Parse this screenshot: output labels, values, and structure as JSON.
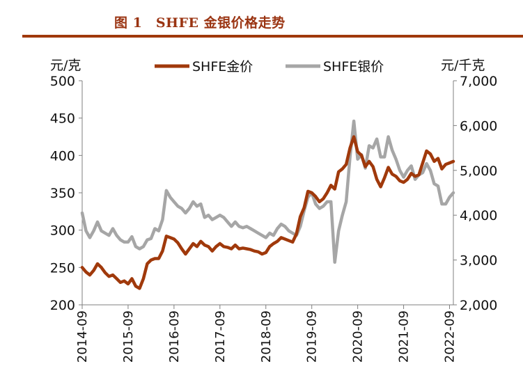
{
  "figure_title": "图 1　SHFE 金银价格走势",
  "colors": {
    "gold": "#a0390b",
    "silver": "#a6a6a6",
    "title": "#9a3412",
    "axis": "#7f7f7f"
  },
  "chart_data": {
    "type": "line",
    "title": "",
    "left_unit": "元/克",
    "right_unit": "元/千克",
    "legend_position": "top",
    "grid": false,
    "x_range": [
      "2014-09",
      "2022-10"
    ],
    "x_ticks": [
      "2014-09",
      "2015-09",
      "2016-09",
      "2017-09",
      "2018-09",
      "2019-09",
      "2020-09",
      "2021-09",
      "2022-09"
    ],
    "y_left": {
      "min": 200,
      "max": 500,
      "ticks": [
        "200",
        "250",
        "300",
        "350",
        "400",
        "450",
        "500"
      ]
    },
    "y_right": {
      "min": 2000,
      "max": 7000,
      "ticks": [
        "2,000",
        "3,000",
        "4,000",
        "5,000",
        "6,000",
        "7,000"
      ]
    },
    "series": [
      {
        "name": "SHFE金价",
        "axis": "left",
        "points": [
          [
            "2014-09",
            250
          ],
          [
            "2014-10",
            244
          ],
          [
            "2014-11",
            240
          ],
          [
            "2014-12",
            246
          ],
          [
            "2015-01",
            255
          ],
          [
            "2015-02",
            250
          ],
          [
            "2015-03",
            243
          ],
          [
            "2015-04",
            238
          ],
          [
            "2015-05",
            240
          ],
          [
            "2015-06",
            235
          ],
          [
            "2015-07",
            230
          ],
          [
            "2015-08",
            232
          ],
          [
            "2015-09",
            228
          ],
          [
            "2015-10",
            235
          ],
          [
            "2015-11",
            225
          ],
          [
            "2015-12",
            222
          ],
          [
            "2016-01",
            235
          ],
          [
            "2016-02",
            255
          ],
          [
            "2016-03",
            260
          ],
          [
            "2016-04",
            262
          ],
          [
            "2016-05",
            262
          ],
          [
            "2016-06",
            272
          ],
          [
            "2016-07",
            292
          ],
          [
            "2016-08",
            290
          ],
          [
            "2016-09",
            288
          ],
          [
            "2016-10",
            283
          ],
          [
            "2016-11",
            275
          ],
          [
            "2016-12",
            268
          ],
          [
            "2017-01",
            275
          ],
          [
            "2017-02",
            282
          ],
          [
            "2017-03",
            278
          ],
          [
            "2017-04",
            285
          ],
          [
            "2017-05",
            280
          ],
          [
            "2017-06",
            278
          ],
          [
            "2017-07",
            272
          ],
          [
            "2017-08",
            278
          ],
          [
            "2017-09",
            282
          ],
          [
            "2017-10",
            278
          ],
          [
            "2017-11",
            277
          ],
          [
            "2017-12",
            275
          ],
          [
            "2018-01",
            280
          ],
          [
            "2018-02",
            275
          ],
          [
            "2018-03",
            276
          ],
          [
            "2018-04",
            275
          ],
          [
            "2018-05",
            274
          ],
          [
            "2018-06",
            272
          ],
          [
            "2018-07",
            271
          ],
          [
            "2018-08",
            268
          ],
          [
            "2018-09",
            270
          ],
          [
            "2018-10",
            278
          ],
          [
            "2018-11",
            282
          ],
          [
            "2018-12",
            285
          ],
          [
            "2019-01",
            290
          ],
          [
            "2019-02",
            288
          ],
          [
            "2019-03",
            286
          ],
          [
            "2019-04",
            284
          ],
          [
            "2019-05",
            295
          ],
          [
            "2019-06",
            318
          ],
          [
            "2019-07",
            330
          ],
          [
            "2019-08",
            352
          ],
          [
            "2019-09",
            350
          ],
          [
            "2019-10",
            345
          ],
          [
            "2019-11",
            338
          ],
          [
            "2019-12",
            342
          ],
          [
            "2020-01",
            350
          ],
          [
            "2020-02",
            360
          ],
          [
            "2020-03",
            355
          ],
          [
            "2020-04",
            378
          ],
          [
            "2020-05",
            382
          ],
          [
            "2020-06",
            388
          ],
          [
            "2020-07",
            410
          ],
          [
            "2020-08",
            425
          ],
          [
            "2020-09",
            405
          ],
          [
            "2020-10",
            400
          ],
          [
            "2020-11",
            385
          ],
          [
            "2020-12",
            392
          ],
          [
            "2021-01",
            385
          ],
          [
            "2021-02",
            368
          ],
          [
            "2021-03",
            358
          ],
          [
            "2021-04",
            370
          ],
          [
            "2021-05",
            384
          ],
          [
            "2021-06",
            375
          ],
          [
            "2021-07",
            372
          ],
          [
            "2021-08",
            366
          ],
          [
            "2021-09",
            364
          ],
          [
            "2021-10",
            368
          ],
          [
            "2021-11",
            376
          ],
          [
            "2021-12",
            372
          ],
          [
            "2022-01",
            374
          ],
          [
            "2022-02",
            390
          ],
          [
            "2022-03",
            406
          ],
          [
            "2022-04",
            402
          ],
          [
            "2022-05",
            392
          ],
          [
            "2022-06",
            396
          ],
          [
            "2022-07",
            382
          ],
          [
            "2022-08",
            388
          ],
          [
            "2022-09",
            390
          ],
          [
            "2022-10",
            392
          ]
        ]
      },
      {
        "name": "SHFE银价",
        "axis": "right",
        "points": [
          [
            "2014-09",
            4050
          ],
          [
            "2014-10",
            3650
          ],
          [
            "2014-11",
            3500
          ],
          [
            "2014-12",
            3650
          ],
          [
            "2015-01",
            3850
          ],
          [
            "2015-02",
            3650
          ],
          [
            "2015-03",
            3600
          ],
          [
            "2015-04",
            3550
          ],
          [
            "2015-05",
            3700
          ],
          [
            "2015-06",
            3550
          ],
          [
            "2015-07",
            3450
          ],
          [
            "2015-08",
            3400
          ],
          [
            "2015-09",
            3400
          ],
          [
            "2015-10",
            3520
          ],
          [
            "2015-11",
            3300
          ],
          [
            "2015-12",
            3250
          ],
          [
            "2016-01",
            3300
          ],
          [
            "2016-02",
            3450
          ],
          [
            "2016-03",
            3480
          ],
          [
            "2016-04",
            3700
          ],
          [
            "2016-05",
            3650
          ],
          [
            "2016-06",
            3900
          ],
          [
            "2016-07",
            4550
          ],
          [
            "2016-08",
            4400
          ],
          [
            "2016-09",
            4300
          ],
          [
            "2016-10",
            4200
          ],
          [
            "2016-11",
            4150
          ],
          [
            "2016-12",
            4050
          ],
          [
            "2017-01",
            4150
          ],
          [
            "2017-02",
            4300
          ],
          [
            "2017-03",
            4200
          ],
          [
            "2017-04",
            4250
          ],
          [
            "2017-05",
            3950
          ],
          [
            "2017-06",
            4000
          ],
          [
            "2017-07",
            3900
          ],
          [
            "2017-08",
            3950
          ],
          [
            "2017-09",
            4000
          ],
          [
            "2017-10",
            3950
          ],
          [
            "2017-11",
            3850
          ],
          [
            "2017-12",
            3750
          ],
          [
            "2018-01",
            3850
          ],
          [
            "2018-02",
            3750
          ],
          [
            "2018-03",
            3720
          ],
          [
            "2018-04",
            3750
          ],
          [
            "2018-05",
            3700
          ],
          [
            "2018-06",
            3650
          ],
          [
            "2018-07",
            3600
          ],
          [
            "2018-08",
            3550
          ],
          [
            "2018-09",
            3500
          ],
          [
            "2018-10",
            3600
          ],
          [
            "2018-11",
            3550
          ],
          [
            "2018-12",
            3700
          ],
          [
            "2019-01",
            3800
          ],
          [
            "2019-02",
            3750
          ],
          [
            "2019-03",
            3650
          ],
          [
            "2019-04",
            3600
          ],
          [
            "2019-05",
            3550
          ],
          [
            "2019-06",
            3750
          ],
          [
            "2019-07",
            4100
          ],
          [
            "2019-08",
            4400
          ],
          [
            "2019-09",
            4500
          ],
          [
            "2019-10",
            4250
          ],
          [
            "2019-11",
            4150
          ],
          [
            "2019-12",
            4200
          ],
          [
            "2020-01",
            4300
          ],
          [
            "2020-02",
            4300
          ],
          [
            "2020-03",
            2950
          ],
          [
            "2020-04",
            3650
          ],
          [
            "2020-05",
            4000
          ],
          [
            "2020-06",
            4300
          ],
          [
            "2020-07",
            5300
          ],
          [
            "2020-08",
            6100
          ],
          [
            "2020-09",
            5250
          ],
          [
            "2020-10",
            5350
          ],
          [
            "2020-11",
            5050
          ],
          [
            "2020-12",
            5550
          ],
          [
            "2021-01",
            5500
          ],
          [
            "2021-02",
            5700
          ],
          [
            "2021-03",
            5300
          ],
          [
            "2021-04",
            5300
          ],
          [
            "2021-05",
            5750
          ],
          [
            "2021-06",
            5450
          ],
          [
            "2021-07",
            5250
          ],
          [
            "2021-08",
            5000
          ],
          [
            "2021-09",
            4850
          ],
          [
            "2021-10",
            5000
          ],
          [
            "2021-11",
            5100
          ],
          [
            "2021-12",
            4800
          ],
          [
            "2022-01",
            4900
          ],
          [
            "2022-02",
            4950
          ],
          [
            "2022-03",
            5150
          ],
          [
            "2022-04",
            5000
          ],
          [
            "2022-05",
            4700
          ],
          [
            "2022-06",
            4650
          ],
          [
            "2022-07",
            4250
          ],
          [
            "2022-08",
            4250
          ],
          [
            "2022-09",
            4400
          ],
          [
            "2022-10",
            4500
          ]
        ]
      }
    ]
  }
}
